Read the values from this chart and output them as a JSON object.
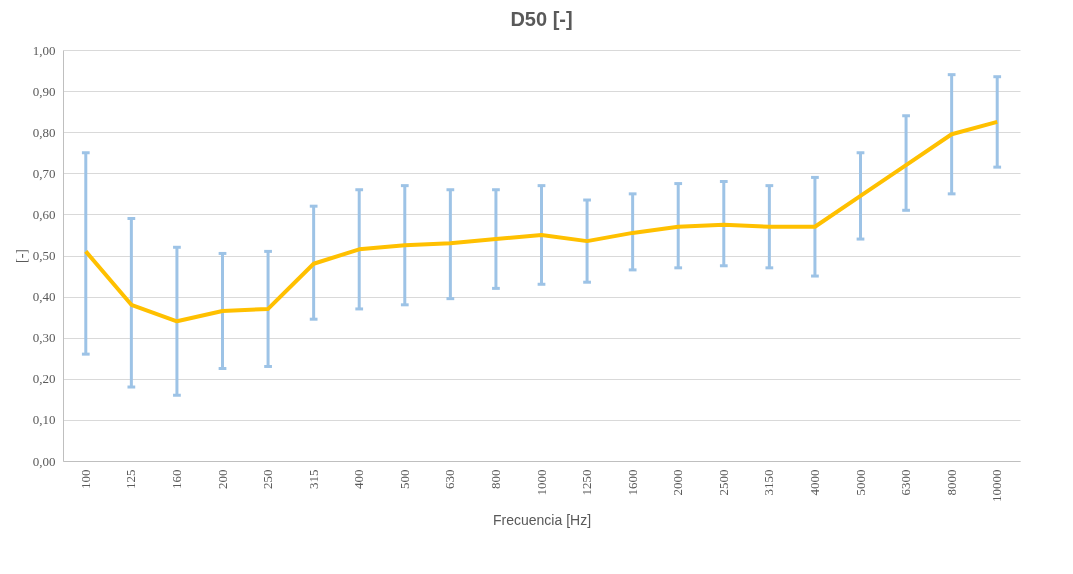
{
  "chart_data": {
    "type": "line",
    "title": "D50 [-]",
    "xlabel": "Frecuencia [Hz]",
    "ylabel": "[-]",
    "categories": [
      "100",
      "125",
      "160",
      "200",
      "250",
      "315",
      "400",
      "500",
      "630",
      "800",
      "1000",
      "1250",
      "1600",
      "2000",
      "2500",
      "3150",
      "4000",
      "5000",
      "6300",
      "8000",
      "10000"
    ],
    "series": [
      {
        "color": "#ffc000",
        "values": [
          0.51,
          0.38,
          0.34,
          0.365,
          0.37,
          0.48,
          0.515,
          0.525,
          0.53,
          0.54,
          0.55,
          0.535,
          0.555,
          0.57,
          0.575,
          0.57,
          0.57,
          0.645,
          0.72,
          0.795,
          0.825
        ],
        "errors": [
          [
            0.26,
            0.75
          ],
          [
            0.18,
            0.59
          ],
          [
            0.16,
            0.52
          ],
          [
            0.225,
            0.505
          ],
          [
            0.23,
            0.51
          ],
          [
            0.345,
            0.62
          ],
          [
            0.37,
            0.66
          ],
          [
            0.38,
            0.67
          ],
          [
            0.395,
            0.66
          ],
          [
            0.42,
            0.66
          ],
          [
            0.43,
            0.67
          ],
          [
            0.435,
            0.635
          ],
          [
            0.465,
            0.65
          ],
          [
            0.47,
            0.675
          ],
          [
            0.475,
            0.68
          ],
          [
            0.47,
            0.67
          ],
          [
            0.45,
            0.69
          ],
          [
            0.54,
            0.75
          ],
          [
            0.61,
            0.84
          ],
          [
            0.65,
            0.94
          ],
          [
            0.715,
            0.935
          ]
        ]
      }
    ],
    "ylim": [
      0,
      1
    ],
    "yticks": [
      {
        "value": 0,
        "label": "0,00"
      },
      {
        "value": 0.1,
        "label": "0,10"
      },
      {
        "value": 0.2,
        "label": "0,20"
      },
      {
        "value": 0.3,
        "label": "0,30"
      },
      {
        "value": 0.4,
        "label": "0,40"
      },
      {
        "value": 0.5,
        "label": "0,50"
      },
      {
        "value": 0.6,
        "label": "0,60"
      },
      {
        "value": 0.7,
        "label": "0,70"
      },
      {
        "value": 0.8,
        "label": "0,80"
      },
      {
        "value": 0.9,
        "label": "0,90"
      },
      {
        "value": 1,
        "label": "1,00"
      }
    ],
    "grid": "y",
    "marker": "none",
    "line_style": "solid"
  }
}
